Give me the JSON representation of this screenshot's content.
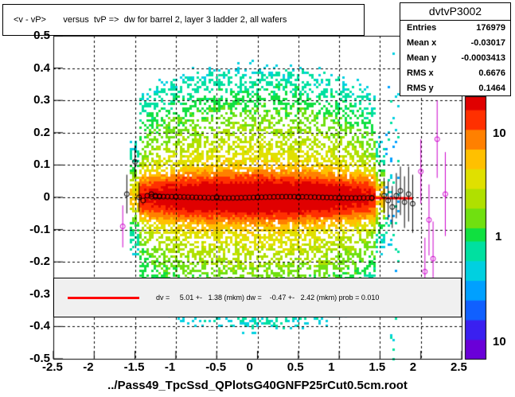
{
  "title": "<v - vP>       versus  tvP =>  dw for barrel 2, layer 3 ladder 2, all wafers",
  "stats": {
    "name": "dvtvP3002",
    "rows": [
      {
        "label": "Entries",
        "value": "176979"
      },
      {
        "label": "Mean x",
        "value": "-0.03017"
      },
      {
        "label": "Mean y",
        "value": "-0.0003413"
      },
      {
        "label": "RMS x",
        "value": "0.6676"
      },
      {
        "label": "RMS y",
        "value": "0.1464"
      }
    ]
  },
  "fit_text": "dv =     5.01 +-   1.38 (mkm) dw =    -0.47 +-   2.42 (mkm) prob = 0.010",
  "xlabel": "../Pass49_TpcSsd_QPlotsG40GNFP25rCut0.5cm.root",
  "colors": {
    "fit": "#ff0000",
    "profile": "#000000",
    "outlier": "#cc00cc"
  },
  "chart_data": {
    "type": "heatmap",
    "xlim": [
      -2.5,
      2.5
    ],
    "ylim": [
      -0.5,
      0.5
    ],
    "xticks": [
      "-2.5",
      "-2",
      "-1.5",
      "-1",
      "-0.5",
      "0",
      "0.5",
      "1",
      "1.5",
      "2",
      "2.5"
    ],
    "yticks": [
      "-0.5",
      "-0.4",
      "-0.3",
      "-0.2",
      "-0.1",
      "0",
      "0.1",
      "0.2",
      "0.3",
      "0.4",
      "0.5"
    ],
    "zscale": "log",
    "zticks": [
      "10",
      "1",
      "10"
    ],
    "grid": true,
    "profile": [
      {
        "x": -1.65,
        "y": -0.09
      },
      {
        "x": -1.6,
        "y": 0.01
      },
      {
        "x": -1.5,
        "y": 0.11
      },
      {
        "x": -1.45,
        "y": 0.0
      },
      {
        "x": -1.4,
        "y": -0.01
      },
      {
        "x": -1.35,
        "y": 0.005
      },
      {
        "x": -1.3,
        "y": 0.01
      },
      {
        "x": -1.25,
        "y": 0.005
      },
      {
        "x": -1.2,
        "y": 0.003
      },
      {
        "x": -1.0,
        "y": 0.002
      },
      {
        "x": -0.5,
        "y": 0.001
      },
      {
        "x": 0.0,
        "y": 0.0
      },
      {
        "x": 0.5,
        "y": 0.0
      },
      {
        "x": 1.0,
        "y": -0.002
      },
      {
        "x": 1.4,
        "y": -0.003
      },
      {
        "x": 1.55,
        "y": 0.005
      },
      {
        "x": 1.6,
        "y": -0.01
      },
      {
        "x": 1.65,
        "y": -0.03
      },
      {
        "x": 1.7,
        "y": 0.005
      },
      {
        "x": 1.75,
        "y": 0.02
      },
      {
        "x": 1.8,
        "y": -0.015
      },
      {
        "x": 1.85,
        "y": 0.01
      },
      {
        "x": 1.9,
        "y": -0.02
      },
      {
        "x": 2.0,
        "y": 0.08
      },
      {
        "x": 2.05,
        "y": -0.23
      },
      {
        "x": 2.1,
        "y": -0.07
      },
      {
        "x": 2.15,
        "y": -0.19
      },
      {
        "x": 2.2,
        "y": 0.18
      },
      {
        "x": 2.3,
        "y": 0.01
      }
    ],
    "fit": {
      "dv": 5.01,
      "dv_err": 1.38,
      "dw": -0.47,
      "dw_err": 2.42,
      "prob": 0.01,
      "x_range": [
        -1.45,
        1.9
      ]
    }
  }
}
